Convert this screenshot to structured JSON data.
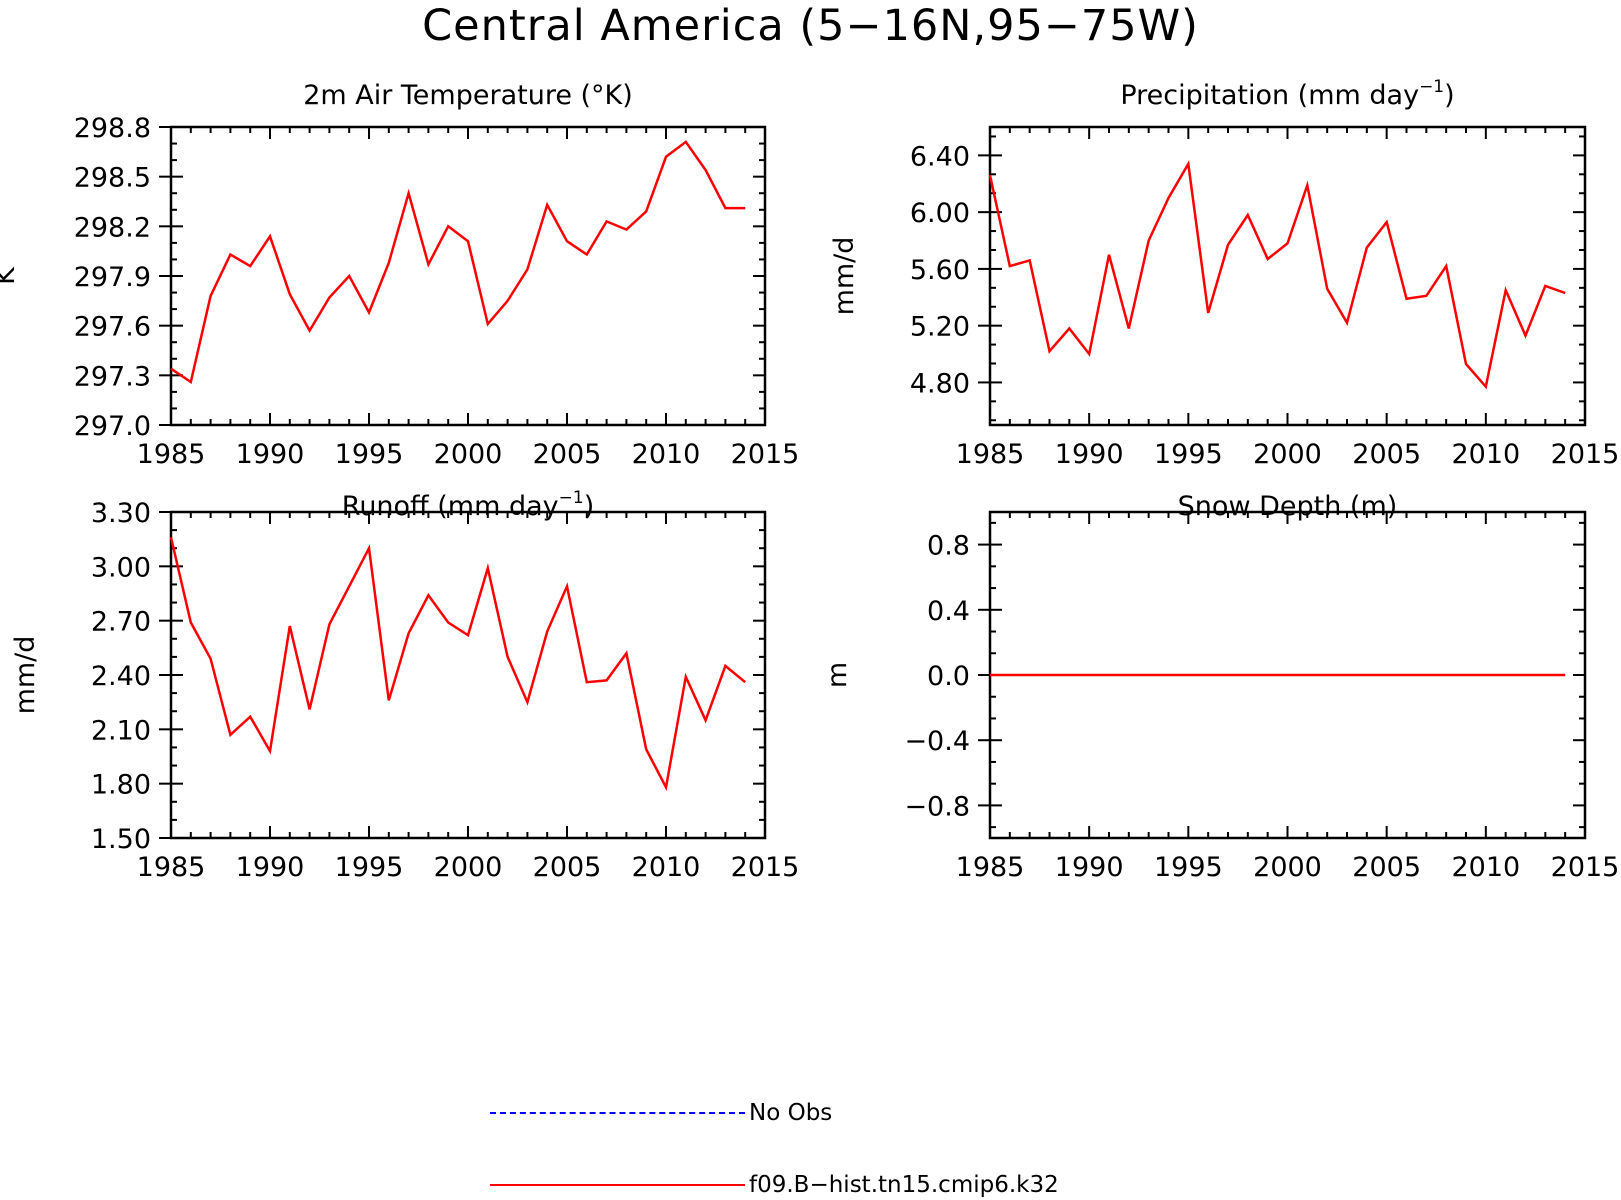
{
  "title": "Central America (5−16N,95−75W)",
  "colors": {
    "model": "#ff0000",
    "obs": "#0000ff",
    "axis": "#000000"
  },
  "chart_data": [
    {
      "type": "line",
      "title": "2m Air Temperature (°K)",
      "ylabel": "K",
      "xlim": [
        1985,
        2015
      ],
      "xticks": [
        1985,
        1990,
        1995,
        2000,
        2005,
        2010,
        2015
      ],
      "ylim": [
        297.0,
        298.8
      ],
      "yticks": [
        "297.0",
        "297.3",
        "297.6",
        "297.9",
        "298.2",
        "298.5",
        "298.8"
      ],
      "series": [
        {
          "name": "f09.B−hist.tn15.cmip6.k32",
          "x": [
            1985,
            1986,
            1987,
            1988,
            1989,
            1990,
            1991,
            1992,
            1993,
            1994,
            1995,
            1996,
            1997,
            1998,
            1999,
            2000,
            2001,
            2002,
            2003,
            2004,
            2005,
            2006,
            2007,
            2008,
            2009,
            2010,
            2011,
            2012,
            2013,
            2014
          ],
          "values": [
            297.34,
            297.26,
            297.78,
            298.03,
            297.96,
            298.14,
            297.79,
            297.57,
            297.77,
            297.9,
            297.68,
            297.98,
            298.4,
            297.97,
            298.2,
            298.11,
            297.61,
            297.75,
            297.94,
            298.33,
            298.11,
            298.03,
            298.23,
            298.18,
            298.29,
            298.62,
            298.71,
            298.54,
            298.31,
            298.31
          ]
        }
      ]
    },
    {
      "type": "line",
      "title": "Precipitation (mm day",
      "title_sup": "−1",
      "title_end": ")",
      "ylabel": "mm/d",
      "xlim": [
        1985,
        2015
      ],
      "xticks": [
        1985,
        1990,
        1995,
        2000,
        2005,
        2010,
        2015
      ],
      "ylim": [
        4.5,
        6.6
      ],
      "yticks": [
        "4.80",
        "5.20",
        "5.60",
        "6.00",
        "6.40"
      ],
      "series": [
        {
          "name": "f09.B−hist.tn15.cmip6.k32",
          "x": [
            1985,
            1986,
            1987,
            1988,
            1989,
            1990,
            1991,
            1992,
            1993,
            1994,
            1995,
            1996,
            1997,
            1998,
            1999,
            2000,
            2001,
            2002,
            2003,
            2004,
            2005,
            2006,
            2007,
            2008,
            2009,
            2010,
            2011,
            2012,
            2013,
            2014
          ],
          "values": [
            6.26,
            5.62,
            5.66,
            5.02,
            5.18,
            5.0,
            5.7,
            5.18,
            5.8,
            6.1,
            6.34,
            5.29,
            5.77,
            5.98,
            5.67,
            5.78,
            6.19,
            5.46,
            5.22,
            5.75,
            5.93,
            5.39,
            5.41,
            5.62,
            4.93,
            4.77,
            5.45,
            5.13,
            5.48,
            5.43
          ]
        }
      ]
    },
    {
      "type": "line",
      "title": "Runoff (mm day",
      "title_sup": "−1",
      "title_end": ")",
      "ylabel": "mm/d",
      "xlim": [
        1985,
        2015
      ],
      "xticks": [
        1985,
        1990,
        1995,
        2000,
        2005,
        2010,
        2015
      ],
      "ylim": [
        1.5,
        3.3
      ],
      "yticks": [
        "1.50",
        "1.80",
        "2.10",
        "2.40",
        "2.70",
        "3.00",
        "3.30"
      ],
      "series": [
        {
          "name": "f09.B−hist.tn15.cmip6.k32",
          "x": [
            1985,
            1986,
            1987,
            1988,
            1989,
            1990,
            1991,
            1992,
            1993,
            1994,
            1995,
            1996,
            1997,
            1998,
            1999,
            2000,
            2001,
            2002,
            2003,
            2004,
            2005,
            2006,
            2007,
            2008,
            2009,
            2010,
            2011,
            2012,
            2013,
            2014
          ],
          "values": [
            3.16,
            2.69,
            2.49,
            2.07,
            2.17,
            1.98,
            2.67,
            2.21,
            2.68,
            2.89,
            3.1,
            2.26,
            2.63,
            2.84,
            2.69,
            2.62,
            2.99,
            2.5,
            2.25,
            2.64,
            2.89,
            2.36,
            2.37,
            2.52,
            1.99,
            1.78,
            2.39,
            2.15,
            2.45,
            2.36
          ]
        }
      ]
    },
    {
      "type": "line",
      "title": "Snow Depth (m)",
      "ylabel": "m",
      "xlim": [
        1985,
        2015
      ],
      "xticks": [
        1985,
        1990,
        1995,
        2000,
        2005,
        2010,
        2015
      ],
      "ylim": [
        -1.0,
        1.0
      ],
      "yticks": [
        "−0.8",
        "−0.4",
        "0.0",
        "0.4",
        "0.8"
      ],
      "series": [
        {
          "name": "f09.B−hist.tn15.cmip6.k32",
          "x": [
            1985,
            1986,
            1987,
            1988,
            1989,
            1990,
            1991,
            1992,
            1993,
            1994,
            1995,
            1996,
            1997,
            1998,
            1999,
            2000,
            2001,
            2002,
            2003,
            2004,
            2005,
            2006,
            2007,
            2008,
            2009,
            2010,
            2011,
            2012,
            2013,
            2014
          ],
          "values": [
            0,
            0,
            0,
            0,
            0,
            0,
            0,
            0,
            0,
            0,
            0,
            0,
            0,
            0,
            0,
            0,
            0,
            0,
            0,
            0,
            0,
            0,
            0,
            0,
            0,
            0,
            0,
            0,
            0,
            0
          ]
        }
      ]
    }
  ],
  "legend": [
    {
      "label": "No Obs",
      "style": "dashed",
      "color": "#0000ff"
    },
    {
      "label": "f09.B−hist.tn15.cmip6.k32",
      "style": "solid",
      "color": "#ff0000"
    }
  ]
}
